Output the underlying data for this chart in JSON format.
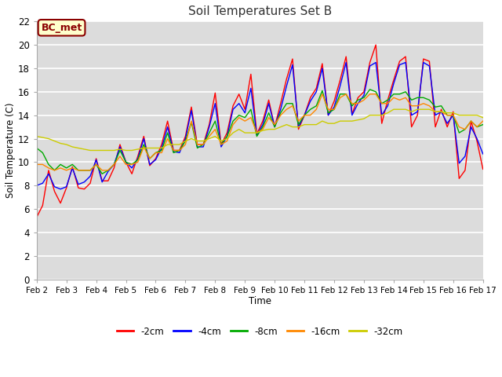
{
  "title": "Soil Temperatures Set B",
  "xlabel": "Time",
  "ylabel": "Soil Temperature (C)",
  "figure_bg": "#ffffff",
  "plot_bg": "#dcdcdc",
  "ylim": [
    0,
    22
  ],
  "yticks": [
    0,
    2,
    4,
    6,
    8,
    10,
    12,
    14,
    16,
    18,
    20,
    22
  ],
  "x_labels": [
    "Feb 2",
    "Feb 3",
    "Feb 4",
    "Feb 5",
    "Feb 6",
    "Feb 7",
    "Feb 8",
    "Feb 9",
    "Feb 10",
    "Feb 11",
    "Feb 12",
    "Feb 13",
    "Feb 14",
    "Feb 15",
    "Feb 16",
    "Feb 17"
  ],
  "annotation_text": "BC_met",
  "annotation_bg": "#ffffcc",
  "annotation_border": "#8b0000",
  "legend_entries": [
    "-2cm",
    "-4cm",
    "-8cm",
    "-16cm",
    "-32cm"
  ],
  "line_colors": [
    "#ff0000",
    "#0000ff",
    "#00aa00",
    "#ff8800",
    "#cccc00"
  ],
  "series": {
    "neg2cm": [
      5.3,
      6.3,
      9.3,
      7.5,
      6.5,
      7.8,
      9.6,
      7.8,
      7.7,
      8.2,
      10.3,
      8.4,
      8.4,
      9.5,
      11.5,
      10.0,
      9.0,
      10.5,
      12.2,
      9.7,
      10.3,
      11.5,
      13.5,
      11.0,
      11.0,
      12.2,
      14.7,
      11.5,
      11.5,
      13.2,
      15.9,
      11.5,
      12.5,
      14.8,
      15.8,
      14.5,
      17.5,
      12.4,
      13.5,
      15.3,
      13.0,
      15.0,
      17.1,
      18.8,
      12.8,
      14.0,
      15.5,
      16.3,
      18.4,
      14.0,
      15.2,
      17.0,
      19.0,
      14.1,
      15.5,
      16.0,
      18.5,
      20.0,
      13.3,
      15.3,
      17.0,
      18.6,
      19.0,
      13.0,
      14.0,
      18.8,
      18.6,
      13.0,
      14.5,
      13.0,
      14.3,
      8.6,
      9.3,
      13.5,
      11.8,
      9.4
    ],
    "neg4cm": [
      8.0,
      8.2,
      9.0,
      7.9,
      7.7,
      7.9,
      9.5,
      8.1,
      8.3,
      8.8,
      10.2,
      8.3,
      9.2,
      9.8,
      11.3,
      10.0,
      9.5,
      10.3,
      12.0,
      9.8,
      10.2,
      11.2,
      13.0,
      10.9,
      10.8,
      12.0,
      14.4,
      11.3,
      11.3,
      13.0,
      15.0,
      11.3,
      12.2,
      14.5,
      15.0,
      14.2,
      16.3,
      12.3,
      13.2,
      15.0,
      13.0,
      14.5,
      16.5,
      18.3,
      13.0,
      14.0,
      15.2,
      16.0,
      18.0,
      14.0,
      14.7,
      16.5,
      18.5,
      14.0,
      15.0,
      15.7,
      18.2,
      18.5,
      14.0,
      14.8,
      16.7,
      18.3,
      18.5,
      14.0,
      14.3,
      18.5,
      18.2,
      14.0,
      14.3,
      13.3,
      14.0,
      9.9,
      10.5,
      13.0,
      12.0,
      10.7
    ],
    "neg8cm": [
      11.2,
      10.8,
      9.8,
      9.3,
      9.8,
      9.5,
      9.8,
      9.3,
      9.3,
      9.3,
      9.8,
      9.0,
      9.3,
      9.8,
      11.0,
      10.0,
      9.8,
      10.2,
      11.5,
      10.3,
      10.8,
      11.0,
      12.5,
      10.8,
      11.0,
      11.8,
      13.4,
      11.2,
      11.5,
      12.5,
      13.5,
      11.5,
      12.2,
      13.5,
      14.0,
      13.8,
      14.5,
      12.2,
      13.0,
      14.2,
      13.0,
      14.2,
      15.0,
      15.0,
      13.2,
      14.0,
      14.5,
      14.8,
      16.1,
      14.2,
      14.5,
      15.8,
      15.8,
      14.8,
      15.3,
      15.5,
      16.2,
      16.0,
      15.0,
      15.3,
      15.8,
      15.8,
      16.0,
      15.3,
      15.5,
      15.5,
      15.3,
      14.7,
      14.8,
      14.0,
      14.0,
      12.5,
      12.8,
      13.5,
      13.0,
      13.2
    ],
    "neg16cm": [
      9.8,
      9.8,
      9.5,
      9.3,
      9.5,
      9.3,
      9.5,
      9.3,
      9.3,
      9.3,
      9.8,
      9.3,
      9.3,
      9.8,
      10.5,
      9.8,
      9.8,
      10.0,
      11.3,
      10.3,
      10.8,
      10.8,
      12.0,
      11.0,
      11.0,
      11.5,
      13.5,
      11.5,
      11.5,
      12.2,
      12.8,
      11.5,
      11.8,
      13.2,
      13.8,
      13.5,
      13.8,
      12.5,
      12.8,
      13.8,
      13.2,
      14.0,
      14.5,
      14.8,
      13.5,
      14.0,
      14.0,
      14.5,
      15.8,
      14.5,
      14.5,
      15.5,
      15.8,
      15.0,
      15.0,
      15.3,
      15.8,
      15.8,
      15.0,
      15.0,
      15.5,
      15.3,
      15.5,
      14.8,
      14.8,
      15.0,
      14.8,
      14.3,
      14.3,
      14.0,
      14.0,
      13.0,
      12.8,
      13.5,
      13.0,
      13.5
    ],
    "neg32cm": [
      12.2,
      12.1,
      12.0,
      11.8,
      11.6,
      11.5,
      11.3,
      11.2,
      11.1,
      11.0,
      11.0,
      11.0,
      11.0,
      11.0,
      11.1,
      11.0,
      11.0,
      11.1,
      11.2,
      11.2,
      11.2,
      11.2,
      11.5,
      11.5,
      11.5,
      11.8,
      12.0,
      11.8,
      11.8,
      12.0,
      12.2,
      11.8,
      12.0,
      12.5,
      12.8,
      12.5,
      12.5,
      12.5,
      12.7,
      12.8,
      12.8,
      13.0,
      13.2,
      13.0,
      13.0,
      13.2,
      13.2,
      13.2,
      13.5,
      13.3,
      13.3,
      13.5,
      13.5,
      13.5,
      13.6,
      13.7,
      14.0,
      14.0,
      14.0,
      14.2,
      14.5,
      14.5,
      14.5,
      14.3,
      14.5,
      14.5,
      14.5,
      14.3,
      14.3,
      14.2,
      14.2,
      14.0,
      14.0,
      14.0,
      14.0,
      13.8
    ]
  }
}
